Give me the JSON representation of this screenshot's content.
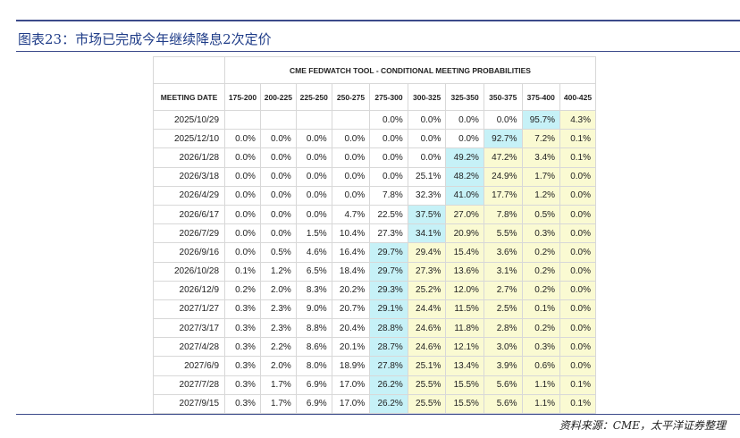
{
  "header": {
    "title": "图表23：市场已完成今年继续降息2次定价"
  },
  "table": {
    "title": "CME FEDWATCH TOOL - CONDITIONAL MEETING PROBABILITIES",
    "columns": [
      "MEETING DATE",
      "175-200",
      "200-225",
      "225-250",
      "250-275",
      "275-300",
      "300-325",
      "325-350",
      "350-375",
      "375-400",
      "400-425"
    ],
    "rows": [
      [
        "2025/10/29",
        null,
        null,
        null,
        null,
        "0.0%",
        "0.0%",
        "0.0%",
        "0.0%",
        "95.7%",
        "4.3%"
      ],
      [
        "2025/12/10",
        "0.0%",
        "0.0%",
        "0.0%",
        "0.0%",
        "0.0%",
        "0.0%",
        "0.0%",
        "92.7%",
        "7.2%",
        "0.1%"
      ],
      [
        "2026/1/28",
        "0.0%",
        "0.0%",
        "0.0%",
        "0.0%",
        "0.0%",
        "0.0%",
        "49.2%",
        "47.2%",
        "3.4%",
        "0.1%"
      ],
      [
        "2026/3/18",
        "0.0%",
        "0.0%",
        "0.0%",
        "0.0%",
        "0.0%",
        "25.1%",
        "48.2%",
        "24.9%",
        "1.7%",
        "0.0%"
      ],
      [
        "2026/4/29",
        "0.0%",
        "0.0%",
        "0.0%",
        "0.0%",
        "7.8%",
        "32.3%",
        "41.0%",
        "17.7%",
        "1.2%",
        "0.0%"
      ],
      [
        "2026/6/17",
        "0.0%",
        "0.0%",
        "0.0%",
        "4.7%",
        "22.5%",
        "37.5%",
        "27.0%",
        "7.8%",
        "0.5%",
        "0.0%"
      ],
      [
        "2026/7/29",
        "0.0%",
        "0.0%",
        "1.5%",
        "10.4%",
        "27.3%",
        "34.1%",
        "20.9%",
        "5.5%",
        "0.3%",
        "0.0%"
      ],
      [
        "2026/9/16",
        "0.0%",
        "0.5%",
        "4.6%",
        "16.4%",
        "29.7%",
        "29.4%",
        "15.4%",
        "3.6%",
        "0.2%",
        "0.0%"
      ],
      [
        "2026/10/28",
        "0.1%",
        "1.2%",
        "6.5%",
        "18.4%",
        "29.7%",
        "27.3%",
        "13.6%",
        "3.1%",
        "0.2%",
        "0.0%"
      ],
      [
        "2026/12/9",
        "0.2%",
        "2.0%",
        "8.3%",
        "20.2%",
        "29.3%",
        "25.2%",
        "12.0%",
        "2.7%",
        "0.2%",
        "0.0%"
      ],
      [
        "2027/1/27",
        "0.3%",
        "2.3%",
        "9.0%",
        "20.7%",
        "29.1%",
        "24.4%",
        "11.5%",
        "2.5%",
        "0.1%",
        "0.0%"
      ],
      [
        "2027/3/17",
        "0.3%",
        "2.3%",
        "8.8%",
        "20.4%",
        "28.8%",
        "24.6%",
        "11.8%",
        "2.8%",
        "0.2%",
        "0.0%"
      ],
      [
        "2027/4/28",
        "0.3%",
        "2.2%",
        "8.6%",
        "20.1%",
        "28.7%",
        "24.6%",
        "12.1%",
        "3.0%",
        "0.3%",
        "0.0%"
      ],
      [
        "2027/6/9",
        "0.3%",
        "2.0%",
        "8.0%",
        "18.9%",
        "27.8%",
        "25.1%",
        "13.4%",
        "3.9%",
        "0.6%",
        "0.0%"
      ],
      [
        "2027/7/28",
        "0.3%",
        "1.7%",
        "6.9%",
        "17.0%",
        "26.2%",
        "25.5%",
        "15.5%",
        "5.6%",
        "1.1%",
        "0.1%"
      ],
      [
        "2027/9/15",
        "0.3%",
        "1.7%",
        "6.9%",
        "17.0%",
        "26.2%",
        "25.5%",
        "15.5%",
        "5.6%",
        "1.1%",
        "0.1%"
      ]
    ]
  },
  "source": "资料来源：CME，太平洋证券整理"
}
